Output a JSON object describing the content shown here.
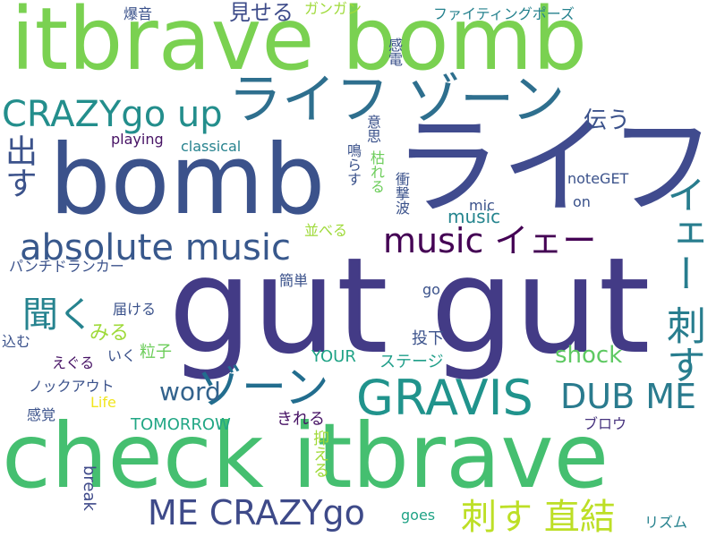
{
  "cloud": {
    "words": [
      {
        "text": "gut gut",
        "color": "#433b86"
      },
      {
        "text": "bomb",
        "color": "#3b528b"
      },
      {
        "text": "check itbrave",
        "color": "#45bf70"
      },
      {
        "text": "ライフ",
        "color": "#404b8e"
      },
      {
        "text": "itbrave bomb",
        "color": "#7ad151"
      },
      {
        "text": "ライフ ゾーン",
        "color": "#2e6f8e"
      },
      {
        "text": "GRAVIS",
        "color": "#20938c"
      },
      {
        "text": "ゾーン",
        "color": "#226d8e"
      },
      {
        "text": "CRAZYgo up",
        "color": "#238e8c"
      },
      {
        "text": "absolute music",
        "color": "#38588c"
      },
      {
        "text": "music イェー",
        "color": "#440154"
      },
      {
        "text": "刺す 直結",
        "color": "#bddf26"
      },
      {
        "text": "DUB ME",
        "color": "#2a7b8e"
      },
      {
        "text": "ME CRAZYgo",
        "color": "#3e4a89"
      },
      {
        "text": "聞く",
        "color": "#26838f"
      },
      {
        "text": "イェー 刺す",
        "color": "#287d8e"
      },
      {
        "text": "出す",
        "color": "#3b528b"
      },
      {
        "text": "word",
        "color": "#33638d"
      },
      {
        "text": "shock",
        "color": "#5ec962"
      },
      {
        "text": "伝う",
        "color": "#3b528b"
      },
      {
        "text": "見せる",
        "color": "#3e4c8a"
      },
      {
        "text": "music",
        "color": "#25858e"
      },
      {
        "text": "みる",
        "color": "#9fda3a"
      },
      {
        "text": "Life",
        "color": "#f1e51d"
      },
      {
        "text": "粒子",
        "color": "#6ccd5a"
      },
      {
        "text": "投下",
        "color": "#3b528b"
      },
      {
        "text": "ステージ",
        "color": "#1f9e89"
      },
      {
        "text": "YOUR",
        "color": "#20a386"
      },
      {
        "text": "ブロウ",
        "color": "#46327e"
      },
      {
        "text": "TOMORROW",
        "color": "#22a785"
      },
      {
        "text": "きれる",
        "color": "#471365"
      },
      {
        "text": "抑える",
        "color": "#a0da39"
      },
      {
        "text": "break",
        "color": "#3e4989"
      },
      {
        "text": "goes",
        "color": "#20a386"
      },
      {
        "text": "リズム",
        "color": "#26828e"
      },
      {
        "text": "届ける",
        "color": "#3b528b"
      },
      {
        "text": "簡単",
        "color": "#3b528b"
      },
      {
        "text": "並べる",
        "color": "#9fda3a"
      },
      {
        "text": "パンチドランカー",
        "color": "#3b528b"
      },
      {
        "text": "ノックアウト",
        "color": "#3b528b"
      },
      {
        "text": "感覚",
        "color": "#3b528b"
      },
      {
        "text": "込む",
        "color": "#3b528b"
      },
      {
        "text": "えぐる",
        "color": "#471365"
      },
      {
        "text": "いく",
        "color": "#3b528b"
      },
      {
        "text": "go",
        "color": "#3b528b"
      },
      {
        "text": "playing",
        "color": "#471365"
      },
      {
        "text": "classical",
        "color": "#26828e"
      },
      {
        "text": "mic",
        "color": "#3b528b"
      },
      {
        "text": "noteGET",
        "color": "#3b528b"
      },
      {
        "text": "on",
        "color": "#3b528b"
      },
      {
        "text": "爆音",
        "color": "#3b528b"
      },
      {
        "text": "ガンガン",
        "color": "#9fda3a"
      },
      {
        "text": "ファイティングポーズ",
        "color": "#26828e"
      },
      {
        "text": "意思",
        "color": "#3b528b"
      },
      {
        "text": "感電",
        "color": "#3b528b"
      },
      {
        "text": "鳴らす",
        "color": "#3b528b"
      },
      {
        "text": "枯れる",
        "color": "#6ccd5a"
      },
      {
        "text": "衝撃波",
        "color": "#3b528b"
      }
    ]
  }
}
